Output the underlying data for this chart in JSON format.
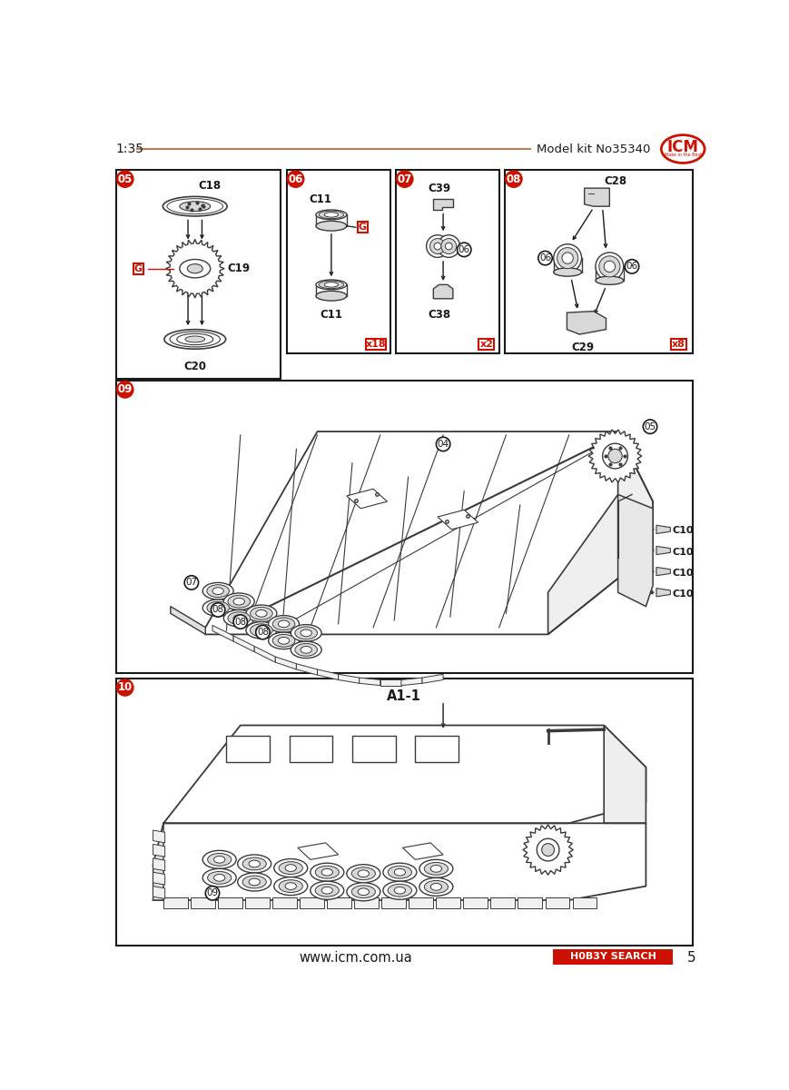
{
  "page_bg": "#ffffff",
  "red_color": "#cc1100",
  "header_line_color": "#c07858",
  "darkgray": "#3a3a3a",
  "midgray": "#888888",
  "lightgray": "#d8d8d8",
  "text_scale": "1:35",
  "text_model": "Model kit No35340",
  "footer_url": "www.icm.com.ua",
  "footer_brand": "H0B3Y SEARCH",
  "page_num": "5"
}
